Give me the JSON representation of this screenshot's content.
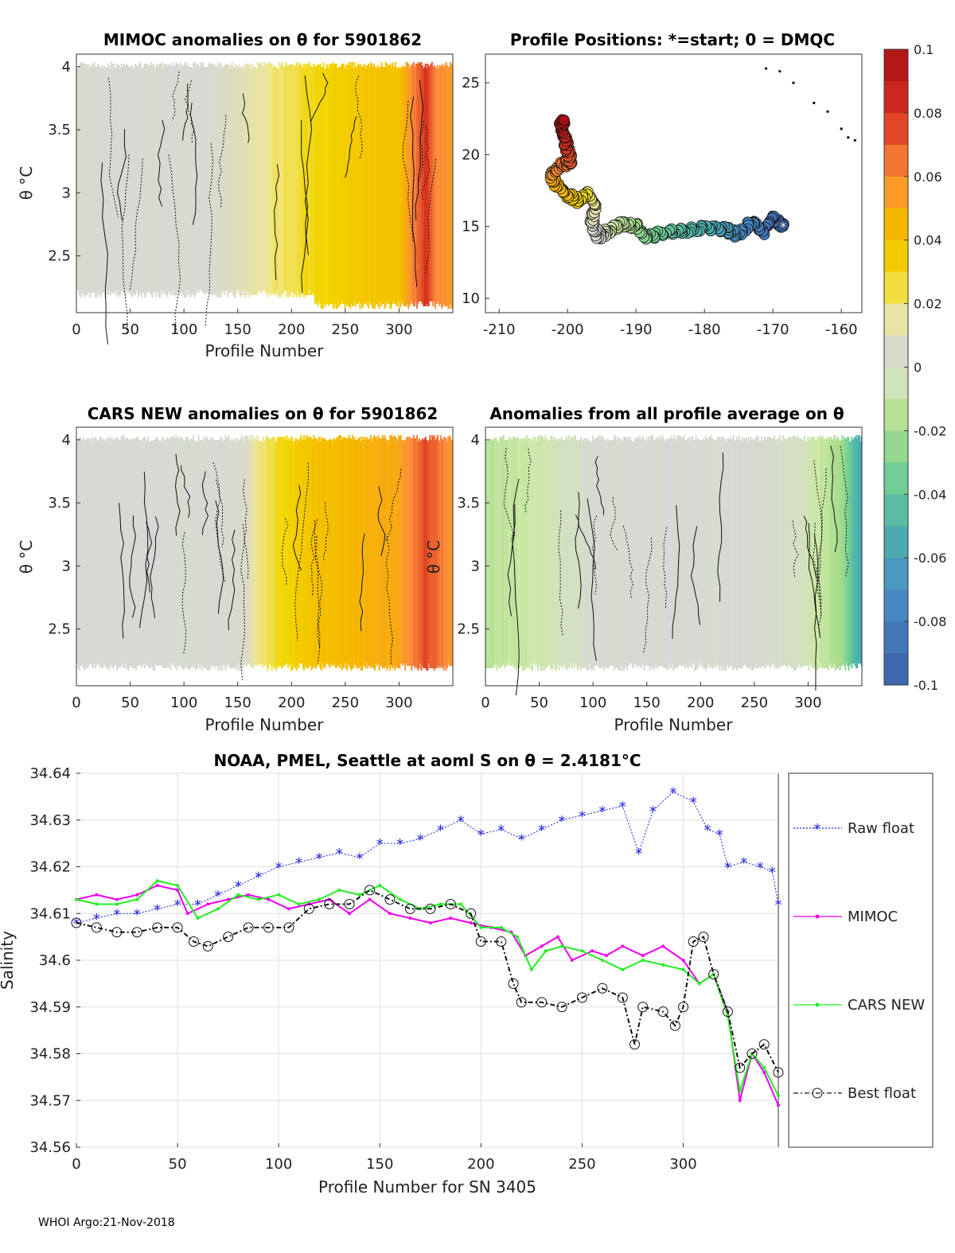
{
  "footer": "WHOI Argo:21-Nov-2018",
  "colorbar": {
    "ticks": [
      "0.1",
      "0.08",
      "0.06",
      "0.04",
      "0.02",
      "0",
      "-0.02",
      "-0.04",
      "-0.06",
      "-0.08",
      "-0.1"
    ],
    "colors": [
      "#a50f15",
      "#d7301f",
      "#f16913",
      "#fd8d3c",
      "#f5b800",
      "#f2d600",
      "#e8e89a",
      "#d8d8d8",
      "#cfe8a8",
      "#a8dc8c",
      "#6fcf97",
      "#4fb3a8",
      "#4a8fc8",
      "#3c5fa8"
    ]
  },
  "chart_data": [
    {
      "id": "mimoc",
      "type": "heatmap",
      "title": "MIMOC anomalies on θ  for 5901862",
      "xlabel": "Profile Number",
      "ylabel": "θ °C",
      "xlim": [
        0,
        350
      ],
      "ylim": [
        2.05,
        4.1
      ],
      "xticks": [
        "0",
        "50",
        "100",
        "150",
        "200",
        "250",
        "300"
      ],
      "yticks": [
        "4",
        "3.5",
        "3",
        "2.5"
      ],
      "column_anomaly": [
        {
          "x": 0,
          "v": 0.005
        },
        {
          "x": 50,
          "v": 0.0
        },
        {
          "x": 100,
          "v": 0.0
        },
        {
          "x": 150,
          "v": 0.01
        },
        {
          "x": 200,
          "v": 0.025
        },
        {
          "x": 250,
          "v": 0.035
        },
        {
          "x": 300,
          "v": 0.04
        },
        {
          "x": 325,
          "v": 0.08
        },
        {
          "x": 335,
          "v": 0.06
        },
        {
          "x": 350,
          "v": 0.055
        }
      ]
    },
    {
      "id": "positions",
      "type": "scatter",
      "title": "Profile Positions: *=start; 0 = DMQC",
      "xlim": [
        -212,
        -157
      ],
      "ylim": [
        9,
        27
      ],
      "xticks": [
        "-210",
        "-200",
        "-190",
        "-180",
        "-170",
        "-160"
      ],
      "yticks": [
        "25",
        "20",
        "15",
        "10"
      ],
      "track": [
        {
          "lon": -168.5,
          "lat": 15.0
        },
        {
          "lon": -170,
          "lat": 15.6
        },
        {
          "lon": -171.5,
          "lat": 14.6
        },
        {
          "lon": -173,
          "lat": 15.4
        },
        {
          "lon": -175,
          "lat": 14.4
        },
        {
          "lon": -177,
          "lat": 14.8
        },
        {
          "lon": -180,
          "lat": 14.9
        },
        {
          "lon": -183,
          "lat": 14.7
        },
        {
          "lon": -186,
          "lat": 14.6
        },
        {
          "lon": -188.5,
          "lat": 14.2
        },
        {
          "lon": -190,
          "lat": 15.0
        },
        {
          "lon": -192,
          "lat": 15.2
        },
        {
          "lon": -194,
          "lat": 14.7
        },
        {
          "lon": -195.5,
          "lat": 14.3
        },
        {
          "lon": -196.5,
          "lat": 15.3
        },
        {
          "lon": -196,
          "lat": 16.5
        },
        {
          "lon": -197,
          "lat": 17.3
        },
        {
          "lon": -198.5,
          "lat": 16.8
        },
        {
          "lon": -200,
          "lat": 17.2
        },
        {
          "lon": -201.5,
          "lat": 17.8
        },
        {
          "lon": -202.5,
          "lat": 18.6
        },
        {
          "lon": -201,
          "lat": 19.2
        },
        {
          "lon": -199.5,
          "lat": 19.6
        },
        {
          "lon": -200,
          "lat": 20.4
        },
        {
          "lon": -200.5,
          "lat": 21.2
        },
        {
          "lon": -201,
          "lat": 22.0
        },
        {
          "lon": -200.5,
          "lat": 22.4
        }
      ],
      "outliers": [
        {
          "lon": -171,
          "lat": 26.0
        },
        {
          "lon": -169,
          "lat": 25.8
        },
        {
          "lon": -167,
          "lat": 25.0
        },
        {
          "lon": -164,
          "lat": 23.6
        },
        {
          "lon": -162,
          "lat": 23.0
        },
        {
          "lon": -160,
          "lat": 21.8
        },
        {
          "lon": -159,
          "lat": 21.2
        },
        {
          "lon": -158,
          "lat": 21.0
        }
      ]
    },
    {
      "id": "cars",
      "type": "heatmap",
      "title": "CARS NEW anomalies on θ for 5901862",
      "xlabel": "Profile Number",
      "ylabel": "θ °C",
      "xlim": [
        0,
        350
      ],
      "ylim": [
        2.05,
        4.1
      ],
      "xticks": [
        "0",
        "50",
        "100",
        "150",
        "200",
        "250",
        "300"
      ],
      "yticks": [
        "4",
        "3.5",
        "3",
        "2.5"
      ],
      "column_anomaly": [
        {
          "x": 0,
          "v": 0.002
        },
        {
          "x": 50,
          "v": 0.0
        },
        {
          "x": 100,
          "v": 0.0
        },
        {
          "x": 150,
          "v": 0.0
        },
        {
          "x": 170,
          "v": 0.02
        },
        {
          "x": 220,
          "v": 0.04
        },
        {
          "x": 260,
          "v": 0.045
        },
        {
          "x": 300,
          "v": 0.05
        },
        {
          "x": 325,
          "v": 0.075
        },
        {
          "x": 350,
          "v": 0.055
        }
      ]
    },
    {
      "id": "allavg",
      "type": "heatmap",
      "title": "Anomalies from all profile average on θ",
      "xlabel": "Profile Number",
      "ylabel": "θ °C",
      "xlim": [
        0,
        350
      ],
      "ylim": [
        2.05,
        4.1
      ],
      "xticks": [
        "0",
        "50",
        "100",
        "150",
        "200",
        "250",
        "300"
      ],
      "yticks": [
        "4",
        "3.5",
        "3",
        "2.5"
      ],
      "column_anomaly": [
        {
          "x": 0,
          "v": -0.015
        },
        {
          "x": 50,
          "v": -0.008
        },
        {
          "x": 100,
          "v": 0.0
        },
        {
          "x": 150,
          "v": 0.0
        },
        {
          "x": 200,
          "v": 0.0
        },
        {
          "x": 250,
          "v": 0.0
        },
        {
          "x": 300,
          "v": -0.005
        },
        {
          "x": 330,
          "v": -0.02
        },
        {
          "x": 350,
          "v": -0.06
        }
      ]
    },
    {
      "id": "salinity",
      "type": "line",
      "title": "NOAA, PMEL, Seattle at aoml S on θ = 2.4181°C",
      "xlabel": "Profile Number for SN 3405",
      "ylabel": "Salinity",
      "xlim": [
        0,
        347
      ],
      "ylim": [
        34.56,
        34.64
      ],
      "xticks": [
        "0",
        "50",
        "100",
        "150",
        "200",
        "250",
        "300"
      ],
      "yticks": [
        "34.64",
        "34.63",
        "34.62",
        "34.61",
        "34.6",
        "34.59",
        "34.58",
        "34.57",
        "34.56"
      ],
      "legend": [
        "Raw float",
        "MIMOC",
        "CARS NEW",
        "Best float"
      ],
      "series": [
        {
          "name": "Raw float",
          "color": "#2222dd",
          "points": [
            [
              0,
              34.608
            ],
            [
              10,
              34.609
            ],
            [
              20,
              34.61
            ],
            [
              30,
              34.61
            ],
            [
              40,
              34.611
            ],
            [
              50,
              34.612
            ],
            [
              60,
              34.612
            ],
            [
              70,
              34.614
            ],
            [
              80,
              34.616
            ],
            [
              90,
              34.618
            ],
            [
              100,
              34.62
            ],
            [
              110,
              34.621
            ],
            [
              120,
              34.622
            ],
            [
              130,
              34.623
            ],
            [
              140,
              34.622
            ],
            [
              150,
              34.625
            ],
            [
              160,
              34.625
            ],
            [
              170,
              34.626
            ],
            [
              180,
              34.628
            ],
            [
              190,
              34.63
            ],
            [
              200,
              34.627
            ],
            [
              210,
              34.628
            ],
            [
              220,
              34.626
            ],
            [
              230,
              34.628
            ],
            [
              240,
              34.63
            ],
            [
              250,
              34.631
            ],
            [
              260,
              34.632
            ],
            [
              270,
              34.633
            ],
            [
              278,
              34.623
            ],
            [
              285,
              34.632
            ],
            [
              295,
              34.636
            ],
            [
              305,
              34.634
            ],
            [
              312,
              34.628
            ],
            [
              318,
              34.627
            ],
            [
              322,
              34.62
            ],
            [
              330,
              34.621
            ],
            [
              338,
              34.62
            ],
            [
              344,
              34.619
            ],
            [
              347,
              34.612
            ]
          ]
        },
        {
          "name": "MIMOC",
          "color": "#ee00ee",
          "points": [
            [
              0,
              34.613
            ],
            [
              10,
              34.614
            ],
            [
              20,
              34.613
            ],
            [
              30,
              34.614
            ],
            [
              40,
              34.616
            ],
            [
              50,
              34.615
            ],
            [
              55,
              34.61
            ],
            [
              65,
              34.612
            ],
            [
              75,
              34.613
            ],
            [
              85,
              34.614
            ],
            [
              95,
              34.613
            ],
            [
              105,
              34.611
            ],
            [
              115,
              34.612
            ],
            [
              125,
              34.613
            ],
            [
              135,
              34.61
            ],
            [
              145,
              34.613
            ],
            [
              155,
              34.61
            ],
            [
              165,
              34.609
            ],
            [
              175,
              34.608
            ],
            [
              185,
              34.609
            ],
            [
              195,
              34.608
            ],
            [
              205,
              34.607
            ],
            [
              215,
              34.606
            ],
            [
              222,
              34.601
            ],
            [
              230,
              34.603
            ],
            [
              238,
              34.605
            ],
            [
              245,
              34.6
            ],
            [
              255,
              34.602
            ],
            [
              262,
              34.601
            ],
            [
              270,
              34.603
            ],
            [
              280,
              34.601
            ],
            [
              290,
              34.603
            ],
            [
              300,
              34.6
            ],
            [
              308,
              34.595
            ],
            [
              315,
              34.597
            ],
            [
              322,
              34.589
            ],
            [
              328,
              34.57
            ],
            [
              334,
              34.58
            ],
            [
              340,
              34.576
            ],
            [
              347,
              34.569
            ]
          ]
        },
        {
          "name": "CARS NEW",
          "color": "#22ee22",
          "points": [
            [
              0,
              34.613
            ],
            [
              10,
              34.612
            ],
            [
              20,
              34.612
            ],
            [
              30,
              34.613
            ],
            [
              40,
              34.617
            ],
            [
              50,
              34.616
            ],
            [
              60,
              34.609
            ],
            [
              70,
              34.611
            ],
            [
              80,
              34.614
            ],
            [
              90,
              34.613
            ],
            [
              100,
              34.614
            ],
            [
              110,
              34.612
            ],
            [
              120,
              34.613
            ],
            [
              130,
              34.615
            ],
            [
              140,
              34.614
            ],
            [
              150,
              34.616
            ],
            [
              160,
              34.613
            ],
            [
              170,
              34.611
            ],
            [
              180,
              34.612
            ],
            [
              190,
              34.612
            ],
            [
              200,
              34.607
            ],
            [
              210,
              34.607
            ],
            [
              218,
              34.605
            ],
            [
              225,
              34.598
            ],
            [
              232,
              34.602
            ],
            [
              240,
              34.603
            ],
            [
              250,
              34.602
            ],
            [
              260,
              34.6
            ],
            [
              270,
              34.598
            ],
            [
              280,
              34.6
            ],
            [
              290,
              34.599
            ],
            [
              300,
              34.598
            ],
            [
              308,
              34.595
            ],
            [
              315,
              34.597
            ],
            [
              322,
              34.588
            ],
            [
              328,
              34.572
            ],
            [
              334,
              34.58
            ],
            [
              340,
              34.577
            ],
            [
              347,
              34.571
            ]
          ]
        },
        {
          "name": "Best float",
          "color": "#111111",
          "points": [
            [
              0,
              34.608
            ],
            [
              10,
              34.607
            ],
            [
              20,
              34.606
            ],
            [
              30,
              34.606
            ],
            [
              40,
              34.607
            ],
            [
              50,
              34.607
            ],
            [
              58,
              34.604
            ],
            [
              65,
              34.603
            ],
            [
              75,
              34.605
            ],
            [
              85,
              34.607
            ],
            [
              95,
              34.607
            ],
            [
              105,
              34.607
            ],
            [
              115,
              34.611
            ],
            [
              125,
              34.612
            ],
            [
              135,
              34.612
            ],
            [
              145,
              34.615
            ],
            [
              155,
              34.613
            ],
            [
              165,
              34.611
            ],
            [
              175,
              34.611
            ],
            [
              185,
              34.612
            ],
            [
              195,
              34.61
            ],
            [
              200,
              34.604
            ],
            [
              210,
              34.604
            ],
            [
              216,
              34.595
            ],
            [
              220,
              34.591
            ],
            [
              230,
              34.591
            ],
            [
              240,
              34.59
            ],
            [
              250,
              34.592
            ],
            [
              260,
              34.594
            ],
            [
              270,
              34.592
            ],
            [
              276,
              34.582
            ],
            [
              280,
              34.59
            ],
            [
              290,
              34.589
            ],
            [
              296,
              34.586
            ],
            [
              300,
              34.59
            ],
            [
              305,
              34.604
            ],
            [
              310,
              34.605
            ],
            [
              315,
              34.597
            ],
            [
              322,
              34.589
            ],
            [
              328,
              34.577
            ],
            [
              334,
              34.58
            ],
            [
              340,
              34.582
            ],
            [
              347,
              34.576
            ]
          ]
        }
      ]
    }
  ]
}
